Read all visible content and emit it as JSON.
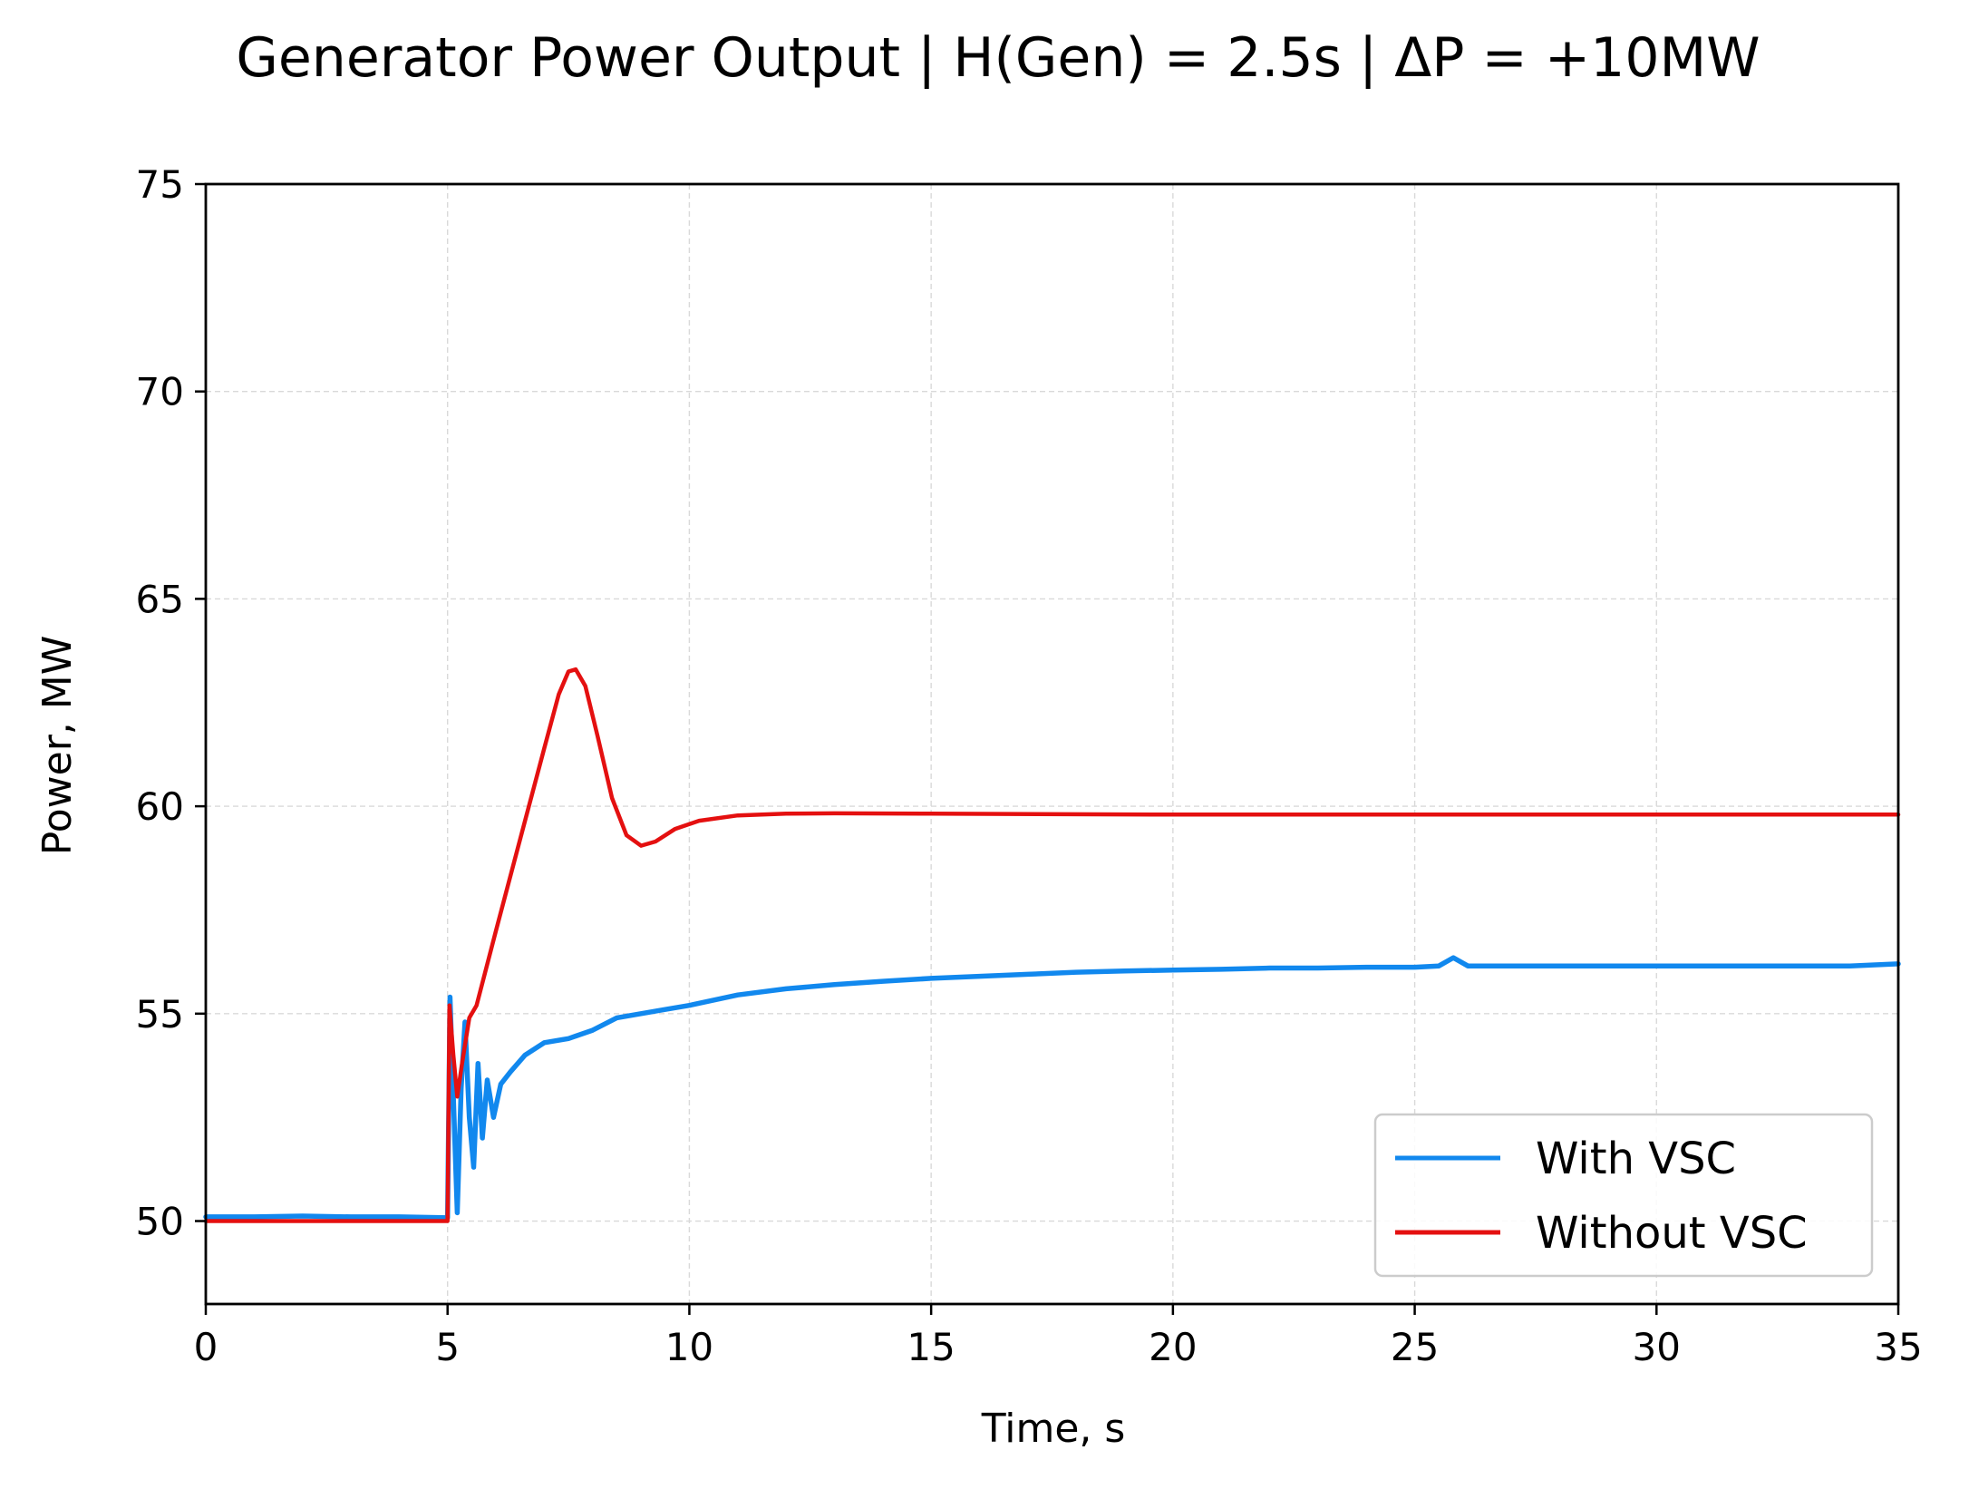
{
  "chart_data": {
    "type": "line",
    "title": "Generator Power Output  |  H(Gen) = 2.5s  |  ΔP = +10MW",
    "xlabel": "Time, s",
    "ylabel": "Power, MW",
    "xlim": [
      0,
      35
    ],
    "ylim": [
      48,
      75
    ],
    "xticks": [
      0,
      5,
      10,
      15,
      20,
      25,
      30,
      35
    ],
    "yticks": [
      50,
      55,
      60,
      65,
      70,
      75
    ],
    "grid": true,
    "legend_position": "lower-right",
    "series": [
      {
        "name": "With VSC",
        "color": "#1188ee",
        "points": [
          [
            0,
            50.1
          ],
          [
            1,
            50.1
          ],
          [
            2,
            50.12
          ],
          [
            3,
            50.1
          ],
          [
            4,
            50.1
          ],
          [
            5.0,
            50.08
          ],
          [
            5.05,
            55.4
          ],
          [
            5.12,
            53.0
          ],
          [
            5.2,
            50.2
          ],
          [
            5.28,
            53.2
          ],
          [
            5.36,
            54.8
          ],
          [
            5.45,
            52.5
          ],
          [
            5.54,
            51.3
          ],
          [
            5.63,
            53.8
          ],
          [
            5.72,
            52.0
          ],
          [
            5.82,
            53.4
          ],
          [
            5.95,
            52.5
          ],
          [
            6.1,
            53.3
          ],
          [
            6.3,
            53.6
          ],
          [
            6.6,
            54.0
          ],
          [
            7.0,
            54.3
          ],
          [
            7.5,
            54.4
          ],
          [
            8.0,
            54.6
          ],
          [
            8.5,
            54.9
          ],
          [
            9.0,
            55.0
          ],
          [
            9.5,
            55.1
          ],
          [
            10,
            55.2
          ],
          [
            11,
            55.45
          ],
          [
            12,
            55.6
          ],
          [
            13,
            55.7
          ],
          [
            14,
            55.78
          ],
          [
            15,
            55.85
          ],
          [
            16,
            55.9
          ],
          [
            17,
            55.95
          ],
          [
            18,
            56.0
          ],
          [
            19,
            56.03
          ],
          [
            20,
            56.05
          ],
          [
            21,
            56.07
          ],
          [
            22,
            56.1
          ],
          [
            23,
            56.1
          ],
          [
            24,
            56.12
          ],
          [
            25,
            56.12
          ],
          [
            25.5,
            56.15
          ],
          [
            25.8,
            56.35
          ],
          [
            26.1,
            56.15
          ],
          [
            27,
            56.15
          ],
          [
            28,
            56.15
          ],
          [
            29,
            56.15
          ],
          [
            30,
            56.15
          ],
          [
            31,
            56.15
          ],
          [
            32,
            56.15
          ],
          [
            33,
            56.15
          ],
          [
            34,
            56.15
          ],
          [
            35,
            56.2
          ]
        ]
      },
      {
        "name": "Without VSC",
        "color": "#e41010",
        "points": [
          [
            0,
            50.0
          ],
          [
            5.0,
            50.0
          ],
          [
            5.04,
            55.2
          ],
          [
            5.12,
            54.0
          ],
          [
            5.2,
            53.0
          ],
          [
            5.3,
            53.8
          ],
          [
            5.45,
            54.9
          ],
          [
            5.6,
            55.2
          ],
          [
            6.0,
            57.0
          ],
          [
            6.5,
            59.2
          ],
          [
            7.0,
            61.4
          ],
          [
            7.3,
            62.7
          ],
          [
            7.5,
            63.25
          ],
          [
            7.65,
            63.3
          ],
          [
            7.85,
            62.9
          ],
          [
            8.1,
            61.7
          ],
          [
            8.4,
            60.2
          ],
          [
            8.7,
            59.3
          ],
          [
            9.0,
            59.05
          ],
          [
            9.3,
            59.15
          ],
          [
            9.7,
            59.45
          ],
          [
            10.2,
            59.65
          ],
          [
            11,
            59.78
          ],
          [
            12,
            59.82
          ],
          [
            13,
            59.83
          ],
          [
            15,
            59.82
          ],
          [
            20,
            59.8
          ],
          [
            25,
            59.8
          ],
          [
            30,
            59.8
          ],
          [
            35,
            59.8
          ]
        ]
      }
    ]
  }
}
